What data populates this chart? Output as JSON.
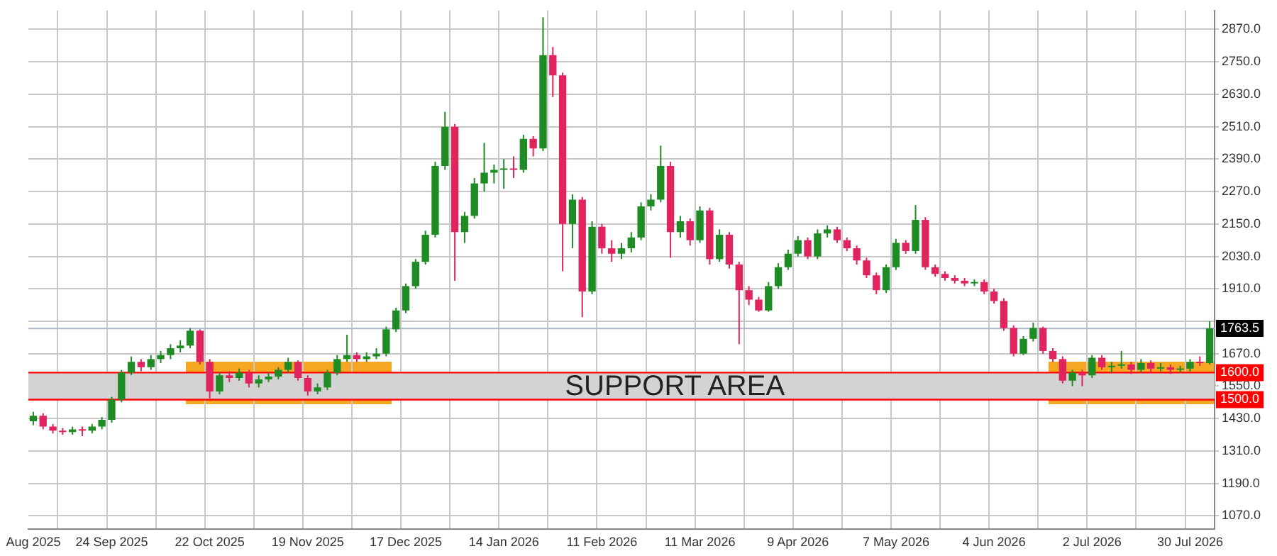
{
  "chart_data": {
    "type": "candlestick",
    "categories": [
      "Aug 2025",
      null,
      null,
      null,
      null,
      null,
      null,
      null,
      "24 Sep 2025",
      null,
      null,
      null,
      null,
      null,
      null,
      null,
      null,
      null,
      "22 Oct 2025",
      null,
      null,
      null,
      null,
      null,
      null,
      null,
      null,
      null,
      "19 Nov 2025",
      null,
      null,
      null,
      null,
      null,
      null,
      null,
      null,
      null,
      "17 Dec 2025",
      null,
      null,
      null,
      null,
      null,
      null,
      null,
      null,
      null,
      "14 Jan 2026",
      null,
      null,
      null,
      null,
      null,
      null,
      null,
      null,
      null,
      "11 Feb 2026",
      null,
      null,
      null,
      null,
      null,
      null,
      null,
      null,
      null,
      "11 Mar 2026",
      null,
      null,
      null,
      null,
      null,
      null,
      null,
      null,
      null,
      "9 Apr 2026",
      null,
      null,
      null,
      null,
      null,
      null,
      null,
      null,
      null,
      "7 May 2026",
      null,
      null,
      null,
      null,
      null,
      null,
      null,
      null,
      null,
      "4 Jun 2026",
      null,
      null,
      null,
      null,
      null,
      null,
      null,
      null,
      null,
      "2 Jul 2026",
      null,
      null,
      null,
      null,
      null,
      null,
      null,
      null,
      null,
      "30 Jul 2026",
      null,
      null
    ],
    "ohlc": [
      [
        1420,
        1455,
        1405,
        1440
      ],
      [
        1440,
        1450,
        1390,
        1400
      ],
      [
        1400,
        1410,
        1375,
        1385
      ],
      [
        1385,
        1395,
        1370,
        1380
      ],
      [
        1380,
        1400,
        1370,
        1390
      ],
      [
        1390,
        1400,
        1365,
        1385
      ],
      [
        1385,
        1410,
        1375,
        1400
      ],
      [
        1400,
        1435,
        1390,
        1425
      ],
      [
        1425,
        1510,
        1415,
        1500
      ],
      [
        1500,
        1610,
        1490,
        1600
      ],
      [
        1600,
        1660,
        1590,
        1640
      ],
      [
        1640,
        1650,
        1605,
        1620
      ],
      [
        1620,
        1665,
        1610,
        1650
      ],
      [
        1650,
        1680,
        1635,
        1665
      ],
      [
        1665,
        1705,
        1650,
        1690
      ],
      [
        1690,
        1720,
        1675,
        1700
      ],
      [
        1700,
        1765,
        1690,
        1755
      ],
      [
        1755,
        1760,
        1630,
        1640
      ],
      [
        1640,
        1650,
        1505,
        1530
      ],
      [
        1530,
        1600,
        1520,
        1590
      ],
      [
        1590,
        1605,
        1565,
        1580
      ],
      [
        1580,
        1615,
        1570,
        1600
      ],
      [
        1600,
        1610,
        1545,
        1560
      ],
      [
        1560,
        1590,
        1545,
        1575
      ],
      [
        1575,
        1600,
        1565,
        1585
      ],
      [
        1585,
        1620,
        1575,
        1610
      ],
      [
        1610,
        1655,
        1600,
        1640
      ],
      [
        1640,
        1645,
        1570,
        1580
      ],
      [
        1580,
        1590,
        1515,
        1530
      ],
      [
        1530,
        1560,
        1520,
        1545
      ],
      [
        1545,
        1610,
        1535,
        1600
      ],
      [
        1600,
        1665,
        1590,
        1650
      ],
      [
        1650,
        1740,
        1640,
        1665
      ],
      [
        1665,
        1675,
        1640,
        1650
      ],
      [
        1650,
        1675,
        1640,
        1660
      ],
      [
        1660,
        1690,
        1650,
        1670
      ],
      [
        1670,
        1770,
        1660,
        1760
      ],
      [
        1760,
        1840,
        1750,
        1830
      ],
      [
        1830,
        1930,
        1820,
        1920
      ],
      [
        1920,
        2020,
        1910,
        2010
      ],
      [
        2010,
        2125,
        2000,
        2110
      ],
      [
        2110,
        2380,
        2100,
        2365
      ],
      [
        2365,
        2565,
        2350,
        2510
      ],
      [
        2510,
        2520,
        1940,
        2120
      ],
      [
        2120,
        2195,
        2080,
        2180
      ],
      [
        2180,
        2320,
        2170,
        2300
      ],
      [
        2300,
        2450,
        2270,
        2340
      ],
      [
        2340,
        2370,
        2300,
        2350
      ],
      [
        2350,
        2390,
        2280,
        2355
      ],
      [
        2355,
        2400,
        2320,
        2350
      ],
      [
        2350,
        2480,
        2340,
        2465
      ],
      [
        2465,
        2475,
        2400,
        2430
      ],
      [
        2430,
        2915,
        2420,
        2775
      ],
      [
        2775,
        2805,
        2620,
        2700
      ],
      [
        2700,
        2710,
        1975,
        2150
      ],
      [
        2150,
        2260,
        2060,
        2240
      ],
      [
        2240,
        2250,
        1805,
        1900
      ],
      [
        1900,
        2160,
        1890,
        2140
      ],
      [
        2140,
        2150,
        2040,
        2060
      ],
      [
        2060,
        2090,
        2010,
        2040
      ],
      [
        2040,
        2080,
        2020,
        2060
      ],
      [
        2060,
        2120,
        2045,
        2100
      ],
      [
        2100,
        2230,
        2090,
        2215
      ],
      [
        2215,
        2260,
        2200,
        2240
      ],
      [
        2240,
        2440,
        2230,
        2365
      ],
      [
        2365,
        2380,
        2025,
        2120
      ],
      [
        2120,
        2180,
        2100,
        2160
      ],
      [
        2160,
        2170,
        2070,
        2090
      ],
      [
        2090,
        2215,
        2080,
        2200
      ],
      [
        2200,
        2210,
        2000,
        2020
      ],
      [
        2020,
        2130,
        2010,
        2110
      ],
      [
        2110,
        2120,
        1985,
        2000
      ],
      [
        2000,
        2010,
        1705,
        1905
      ],
      [
        1905,
        1920,
        1850,
        1870
      ],
      [
        1870,
        1880,
        1825,
        1830
      ],
      [
        1830,
        1935,
        1825,
        1920
      ],
      [
        1920,
        2005,
        1910,
        1990
      ],
      [
        1990,
        2055,
        1980,
        2040
      ],
      [
        2040,
        2105,
        2030,
        2090
      ],
      [
        2090,
        2100,
        2020,
        2030
      ],
      [
        2030,
        2130,
        2020,
        2115
      ],
      [
        2115,
        2145,
        2100,
        2130
      ],
      [
        2130,
        2140,
        2080,
        2090
      ],
      [
        2090,
        2100,
        2050,
        2060
      ],
      [
        2060,
        2070,
        2000,
        2015
      ],
      [
        2015,
        2025,
        1950,
        1960
      ],
      [
        1960,
        1970,
        1890,
        1905
      ],
      [
        1905,
        2000,
        1895,
        1990
      ],
      [
        1990,
        2095,
        1980,
        2080
      ],
      [
        2080,
        2090,
        2040,
        2050
      ],
      [
        2050,
        2220,
        2040,
        2165
      ],
      [
        2165,
        2175,
        1980,
        1990
      ],
      [
        1990,
        2000,
        1955,
        1965
      ],
      [
        1965,
        1975,
        1940,
        1950
      ],
      [
        1950,
        1960,
        1930,
        1940
      ],
      [
        1940,
        1950,
        1920,
        1930
      ],
      [
        1930,
        1945,
        1920,
        1935
      ],
      [
        1935,
        1945,
        1890,
        1900
      ],
      [
        1900,
        1910,
        1855,
        1865
      ],
      [
        1865,
        1875,
        1755,
        1765
      ],
      [
        1765,
        1775,
        1660,
        1670
      ],
      [
        1670,
        1735,
        1665,
        1725
      ],
      [
        1725,
        1785,
        1715,
        1765
      ],
      [
        1765,
        1770,
        1670,
        1680
      ],
      [
        1680,
        1690,
        1640,
        1650
      ],
      [
        1650,
        1660,
        1560,
        1570
      ],
      [
        1570,
        1610,
        1550,
        1600
      ],
      [
        1600,
        1610,
        1550,
        1590
      ],
      [
        1590,
        1665,
        1580,
        1655
      ],
      [
        1655,
        1665,
        1610,
        1620
      ],
      [
        1620,
        1640,
        1600,
        1625
      ],
      [
        1625,
        1680,
        1615,
        1630
      ],
      [
        1630,
        1640,
        1595,
        1610
      ],
      [
        1610,
        1650,
        1600,
        1635
      ],
      [
        1635,
        1645,
        1600,
        1615
      ],
      [
        1615,
        1635,
        1605,
        1620
      ],
      [
        1620,
        1630,
        1595,
        1610
      ],
      [
        1610,
        1625,
        1600,
        1615
      ],
      [
        1615,
        1650,
        1605,
        1640
      ],
      [
        1640,
        1660,
        1625,
        1635
      ],
      [
        1635,
        1790,
        1630,
        1763.5
      ]
    ],
    "colors": [
      "#1f8b24",
      "#e0245e",
      "#e0245e",
      "#e0245e",
      "#1f8b24",
      "#e0245e",
      "#1f8b24",
      "#1f8b24",
      "#1f8b24",
      "#1f8b24",
      "#1f8b24",
      "#e0245e",
      "#1f8b24",
      "#1f8b24",
      "#1f8b24",
      "#1f8b24",
      "#1f8b24",
      "#e0245e",
      "#e0245e",
      "#1f8b24",
      "#e0245e",
      "#1f8b24",
      "#e0245e",
      "#1f8b24",
      "#1f8b24",
      "#1f8b24",
      "#1f8b24",
      "#e0245e",
      "#e0245e",
      "#1f8b24",
      "#1f8b24",
      "#1f8b24",
      "#1f8b24",
      "#e0245e",
      "#1f8b24",
      "#1f8b24",
      "#1f8b24",
      "#1f8b24",
      "#1f8b24",
      "#1f8b24",
      "#1f8b24",
      "#1f8b24",
      "#1f8b24",
      "#e0245e",
      "#1f8b24",
      "#1f8b24",
      "#1f8b24",
      "#1f8b24",
      "#1f8b24",
      "#e0245e",
      "#1f8b24",
      "#e0245e",
      "#1f8b24",
      "#e0245e",
      "#e0245e",
      "#1f8b24",
      "#e0245e",
      "#1f8b24",
      "#e0245e",
      "#e0245e",
      "#1f8b24",
      "#1f8b24",
      "#1f8b24",
      "#1f8b24",
      "#1f8b24",
      "#e0245e",
      "#1f8b24",
      "#e0245e",
      "#1f8b24",
      "#e0245e",
      "#1f8b24",
      "#e0245e",
      "#e0245e",
      "#e0245e",
      "#e0245e",
      "#1f8b24",
      "#1f8b24",
      "#1f8b24",
      "#1f8b24",
      "#e0245e",
      "#1f8b24",
      "#1f8b24",
      "#e0245e",
      "#e0245e",
      "#e0245e",
      "#e0245e",
      "#e0245e",
      "#1f8b24",
      "#1f8b24",
      "#e0245e",
      "#1f8b24",
      "#e0245e",
      "#e0245e",
      "#e0245e",
      "#e0245e",
      "#e0245e",
      "#1f8b24",
      "#e0245e",
      "#e0245e",
      "#e0245e",
      "#e0245e",
      "#1f8b24",
      "#1f8b24",
      "#e0245e",
      "#e0245e",
      "#e0245e",
      "#1f8b24",
      "#e0245e",
      "#1f8b24",
      "#e0245e",
      "#1f8b24",
      "#1f8b24",
      "#e0245e",
      "#1f8b24",
      "#e0245e",
      "#1f8b24",
      "#e0245e",
      "#1f8b24",
      "#1f8b24",
      "#e0245e",
      "#1f8b24"
    ],
    "ylim": [
      1020,
      2940
    ],
    "yticks": [
      {
        "value": 1070,
        "label": "1070.0"
      },
      {
        "value": 1190,
        "label": "1190.0"
      },
      {
        "value": 1310,
        "label": "1310.0"
      },
      {
        "value": 1430,
        "label": "1430.0"
      },
      {
        "value": 1550,
        "label": "1550.0"
      },
      {
        "value": 1670,
        "label": "1670.0"
      },
      {
        "value": 1790,
        "label": null
      },
      {
        "value": 1910,
        "label": "1910.0"
      },
      {
        "value": 2030,
        "label": "2030.0"
      },
      {
        "value": 2150,
        "label": "2150.0"
      },
      {
        "value": 2270,
        "label": "2270.0"
      },
      {
        "value": 2390,
        "label": "2390.0"
      },
      {
        "value": 2510,
        "label": "2510.0"
      },
      {
        "value": 2630,
        "label": "2630.0"
      },
      {
        "value": 2750,
        "label": "2750.0"
      },
      {
        "value": 2870,
        "label": "2870.0"
      }
    ],
    "grid": true,
    "bands": [
      {
        "axis": "y",
        "from": 1500,
        "to": 1600,
        "label": "SUPPORT AREA",
        "color": "#d3d3d3"
      }
    ],
    "ref_lines": [
      {
        "axis": "y",
        "value": 1763.5,
        "label": "1763.5",
        "color": "#b4bccc"
      },
      {
        "axis": "y",
        "value": 1600,
        "label": "1600.0",
        "color": "#ff0000"
      },
      {
        "axis": "y",
        "value": 1500,
        "label": "1500.0",
        "color": "#ff0000"
      }
    ]
  }
}
